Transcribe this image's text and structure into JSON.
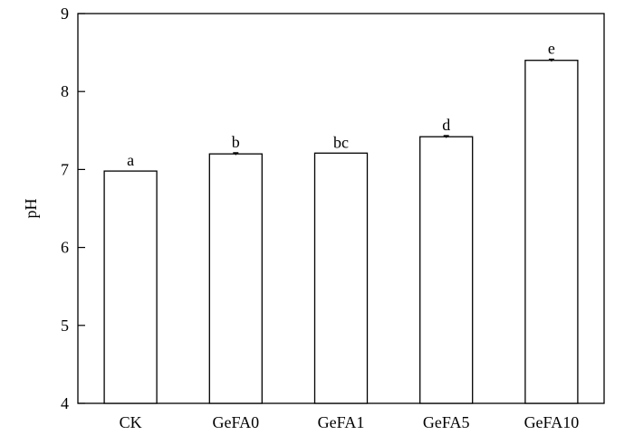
{
  "chart_data": {
    "type": "bar",
    "categories": [
      "CK",
      "GeFA0",
      "GeFA1",
      "GeFA5",
      "GeFA10"
    ],
    "values": [
      6.98,
      7.2,
      7.21,
      7.42,
      8.4
    ],
    "errors": [
      0.0,
      0.015,
      0.0,
      0.015,
      0.015
    ],
    "significance_letters": [
      "a",
      "b",
      "bc",
      "d",
      "e"
    ],
    "xlabel": "",
    "ylabel": "pH",
    "ylim": [
      4,
      9
    ],
    "yticks": [
      "4",
      "5",
      "6",
      "7",
      "8",
      "9"
    ],
    "grid": false,
    "bar_fill": "#ffffff",
    "bar_edge": "#000000"
  }
}
